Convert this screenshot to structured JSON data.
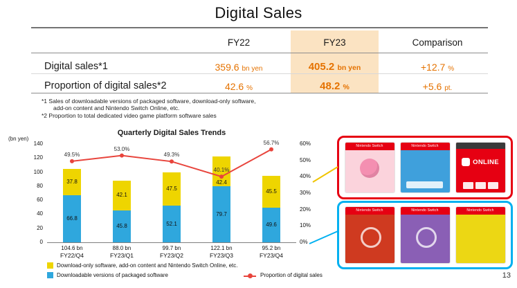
{
  "page": {
    "title": "Digital Sales",
    "page_number": "13"
  },
  "table": {
    "headers": [
      "FY22",
      "FY23",
      "Comparison"
    ],
    "highlight_color": "#fbe3c2",
    "value_color": "#e57200",
    "rows": [
      {
        "label": "Digital sales*1",
        "fy22_value": "359.6",
        "fy22_unit": "bn yen",
        "fy23_value": "405.2",
        "fy23_unit": "bn yen",
        "comparison_value": "+12.7",
        "comparison_unit": "%"
      },
      {
        "label": "Proportion of digital sales*2",
        "fy22_value": "42.6",
        "fy22_unit": "%",
        "fy23_value": "48.2",
        "fy23_unit": "%",
        "comparison_value": "+5.6",
        "comparison_unit": "pt."
      }
    ]
  },
  "footnotes": {
    "line1": "*1 Sales of downloadable versions of packaged software, download-only software,",
    "line2": "add-on content and Nintendo Switch Online, etc.",
    "line3": "*2 Proportion to total dedicated video game platform software sales"
  },
  "chart_data": {
    "type": "bar",
    "subtype": "stacked-bars-with-line",
    "title": "Quarterly Digital Sales Trends",
    "y_axis_unit": "(bn yen)",
    "ylim": [
      0,
      140
    ],
    "y_ticks": [
      0,
      20,
      40,
      60,
      80,
      100,
      120,
      140
    ],
    "y2lim": [
      0,
      60
    ],
    "y2_ticks": [
      "0%",
      "10%",
      "20%",
      "30%",
      "40%",
      "50%",
      "60%"
    ],
    "categories": [
      "FY22/Q4",
      "FY23/Q1",
      "FY23/Q2",
      "FY23/Q3",
      "FY23/Q4"
    ],
    "totals": [
      "104.6 bn",
      "88.0 bn",
      "99.7 bn",
      "122.1 bn",
      "95.2 bn"
    ],
    "series": [
      {
        "name": "Downloadable versions of packaged software",
        "color": "#2fa7dd",
        "values": [
          66.8,
          45.8,
          52.1,
          79.7,
          49.6
        ]
      },
      {
        "name": "Download-only software, add-on content and Nintendo Switch Online, etc.",
        "color": "#eed500",
        "values": [
          37.8,
          42.1,
          47.5,
          42.4,
          45.5
        ]
      }
    ],
    "line": {
      "name": "Proportion of digital sales",
      "color": "#e8443c",
      "values": [
        49.5,
        53.0,
        49.3,
        40.1,
        56.7
      ],
      "labels": [
        "49.5%",
        "53.0%",
        "49.3%",
        "40.1%",
        "56.7%"
      ]
    },
    "legend_position": "bottom",
    "grid": false
  },
  "images": {
    "top_box_border": "#e60012",
    "bottom_box_border": "#00b0f0",
    "top_connector": "#f0c400",
    "bottom_connector": "#00b0f0",
    "switch_banner": "Nintendo Switch",
    "online_label": "ONLINE",
    "top_cards": {
      "kirby": "#fbd3dc",
      "mario_kart": "#3fa0dc",
      "online": "#e60012"
    },
    "bottom_cards": {
      "scarlet": "#cf3a20",
      "violet": "#8a5fb5",
      "splatoon": "#ecd714"
    }
  }
}
